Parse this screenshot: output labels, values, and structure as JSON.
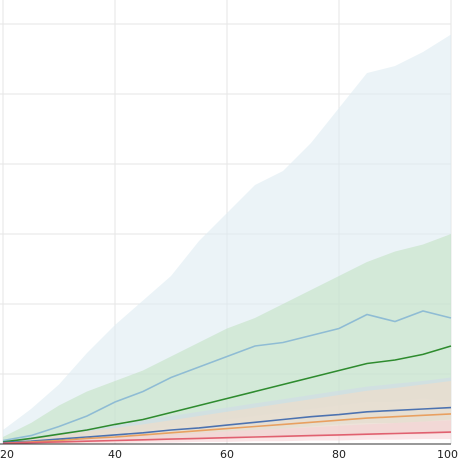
{
  "chart_data": {
    "type": "line",
    "title": "",
    "xlabel": "",
    "ylabel": "",
    "xlim": [
      20,
      100
    ],
    "ylim": [
      0,
      6
    ],
    "x_ticks": [
      20,
      40,
      60,
      80,
      100
    ],
    "x_tick_labels": [
      "20",
      "40",
      "60",
      "80",
      "100"
    ],
    "y_ticks": [
      1,
      2,
      3,
      4,
      5,
      6
    ],
    "grid": true,
    "legend": "none",
    "series": [
      {
        "color": "#8fbcd4",
        "band_color": "#dbe9f1",
        "x": [
          20,
          25,
          30,
          35,
          40,
          45,
          50,
          55,
          60,
          65,
          70,
          75,
          80,
          85,
          90,
          95,
          100
        ],
        "values": [
          0.05,
          0.12,
          0.25,
          0.4,
          0.6,
          0.75,
          0.95,
          1.1,
          1.25,
          1.4,
          1.45,
          1.55,
          1.65,
          1.85,
          1.75,
          1.9,
          1.8
        ],
        "lower": [
          0.02,
          0.05,
          0.08,
          0.12,
          0.18,
          0.2,
          0.25,
          0.3,
          0.35,
          0.4,
          0.45,
          0.5,
          0.55,
          0.6,
          0.6,
          0.65,
          0.6
        ],
        "upper": [
          0.2,
          0.5,
          0.85,
          1.3,
          1.7,
          2.05,
          2.4,
          2.9,
          3.3,
          3.7,
          3.9,
          4.3,
          4.8,
          5.3,
          5.4,
          5.6,
          5.85
        ]
      },
      {
        "color": "#2e8b2e",
        "band_color": "#bfe0bf",
        "x": [
          20,
          25,
          30,
          35,
          40,
          45,
          50,
          55,
          60,
          65,
          70,
          75,
          80,
          85,
          90,
          95,
          100
        ],
        "values": [
          0.03,
          0.08,
          0.14,
          0.2,
          0.28,
          0.35,
          0.45,
          0.55,
          0.65,
          0.75,
          0.85,
          0.95,
          1.05,
          1.15,
          1.2,
          1.28,
          1.4
        ],
        "lower": [
          0.0,
          0.02,
          0.04,
          0.06,
          0.08,
          0.1,
          0.12,
          0.15,
          0.18,
          0.2,
          0.22,
          0.25,
          0.28,
          0.3,
          0.3,
          0.32,
          0.35
        ],
        "upper": [
          0.1,
          0.3,
          0.55,
          0.75,
          0.9,
          1.05,
          1.25,
          1.45,
          1.65,
          1.8,
          2.0,
          2.2,
          2.4,
          2.6,
          2.75,
          2.85,
          3.0
        ]
      },
      {
        "color": "#4c72b0",
        "band_color": "#cfd8ea",
        "x": [
          20,
          25,
          30,
          35,
          40,
          45,
          50,
          55,
          60,
          65,
          70,
          75,
          80,
          85,
          90,
          95,
          100
        ],
        "values": [
          0.02,
          0.04,
          0.07,
          0.1,
          0.13,
          0.16,
          0.2,
          0.23,
          0.27,
          0.31,
          0.35,
          0.39,
          0.42,
          0.46,
          0.48,
          0.5,
          0.52
        ],
        "lower": [
          0.0,
          0.01,
          0.02,
          0.03,
          0.04,
          0.05,
          0.06,
          0.07,
          0.08,
          0.09,
          0.1,
          0.11,
          0.12,
          0.13,
          0.14,
          0.15,
          0.16
        ],
        "upper": [
          0.05,
          0.1,
          0.16,
          0.22,
          0.28,
          0.34,
          0.4,
          0.46,
          0.52,
          0.58,
          0.64,
          0.7,
          0.76,
          0.82,
          0.86,
          0.9,
          0.95
        ]
      },
      {
        "color": "#e8a060",
        "band_color": "#f6dcc4",
        "x": [
          20,
          25,
          30,
          35,
          40,
          45,
          50,
          55,
          60,
          65,
          70,
          75,
          80,
          85,
          90,
          95,
          100
        ],
        "values": [
          0.01,
          0.03,
          0.05,
          0.08,
          0.1,
          0.13,
          0.16,
          0.19,
          0.22,
          0.25,
          0.28,
          0.31,
          0.34,
          0.37,
          0.39,
          0.41,
          0.43
        ],
        "lower": [
          0.0,
          0.0,
          0.01,
          0.02,
          0.03,
          0.04,
          0.05,
          0.06,
          0.07,
          0.08,
          0.09,
          0.1,
          0.11,
          0.12,
          0.13,
          0.14,
          0.15
        ],
        "upper": [
          0.04,
          0.08,
          0.13,
          0.18,
          0.23,
          0.28,
          0.34,
          0.4,
          0.46,
          0.52,
          0.58,
          0.64,
          0.7,
          0.76,
          0.8,
          0.85,
          0.9
        ]
      },
      {
        "color": "#e06070",
        "band_color": "#f5cfd4",
        "x": [
          20,
          25,
          30,
          35,
          40,
          45,
          50,
          55,
          60,
          65,
          70,
          75,
          80,
          85,
          90,
          95,
          100
        ],
        "values": [
          0.01,
          0.02,
          0.03,
          0.04,
          0.05,
          0.06,
          0.07,
          0.08,
          0.09,
          0.1,
          0.11,
          0.12,
          0.13,
          0.14,
          0.15,
          0.16,
          0.17
        ],
        "lower": [
          0.0,
          0.0,
          0.0,
          0.01,
          0.01,
          0.02,
          0.02,
          0.03,
          0.03,
          0.04,
          0.04,
          0.05,
          0.05,
          0.06,
          0.06,
          0.07,
          0.07
        ],
        "upper": [
          0.02,
          0.04,
          0.06,
          0.08,
          0.1,
          0.12,
          0.14,
          0.16,
          0.18,
          0.2,
          0.22,
          0.24,
          0.26,
          0.28,
          0.3,
          0.32,
          0.34
        ]
      }
    ]
  }
}
